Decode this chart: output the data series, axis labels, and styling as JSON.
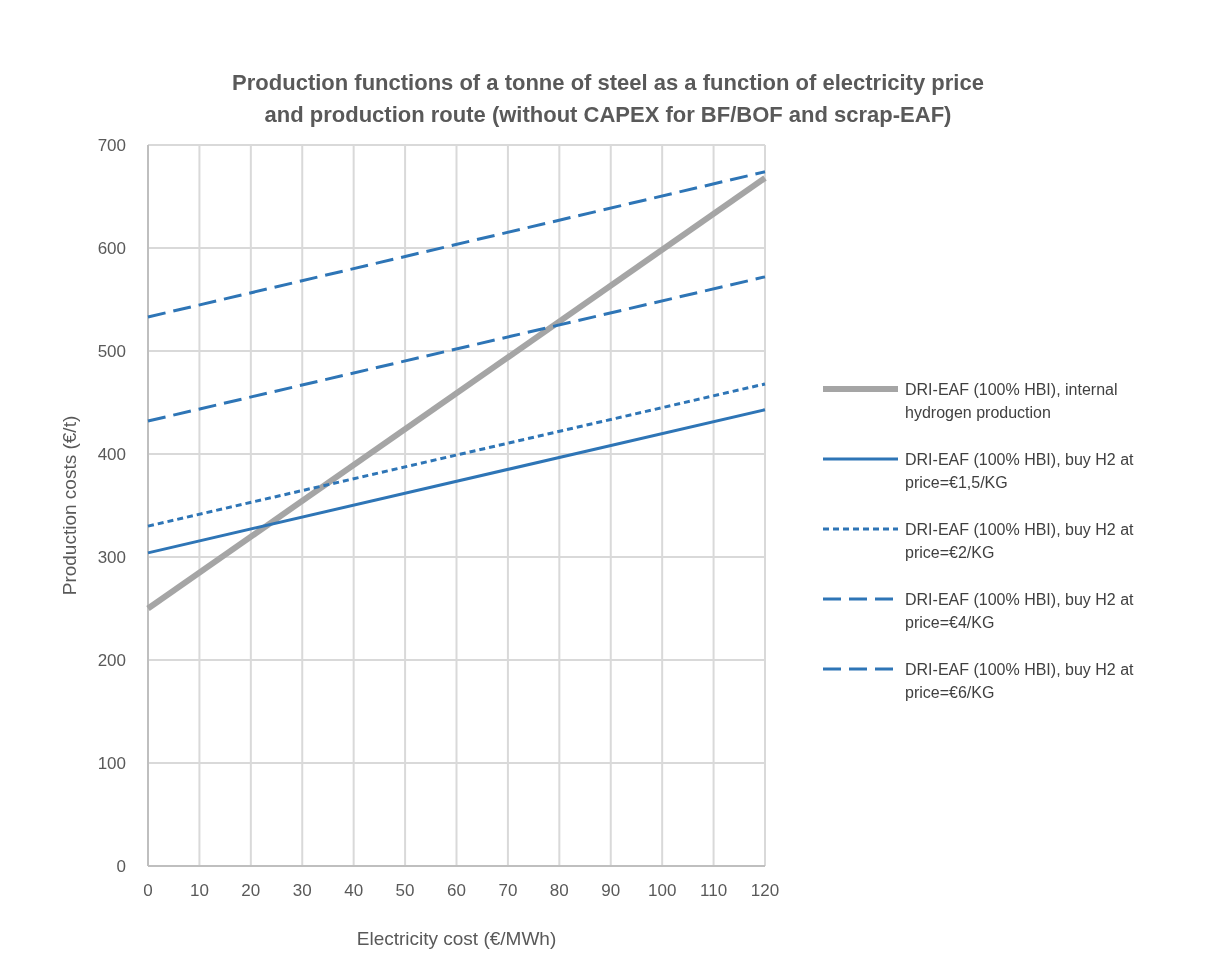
{
  "chart_data": {
    "type": "line",
    "title": "Production functions of a tonne of steel as a function of electricity price and production route (without CAPEX for BF/BOF and scrap-EAF)",
    "xlabel": "Electricity cost (€/MWh)",
    "ylabel": "Production costs (€/t)",
    "x": [
      0,
      120
    ],
    "xlim": [
      0,
      120
    ],
    "xticks": [
      0,
      10,
      20,
      30,
      40,
      50,
      60,
      70,
      80,
      90,
      100,
      110,
      120
    ],
    "ylim": [
      0,
      700
    ],
    "yticks": [
      0,
      100,
      200,
      300,
      400,
      500,
      600,
      700
    ],
    "grid": true,
    "legend": "right",
    "marker": "none",
    "series": [
      {
        "name": "DRI-EAF (100% HBI), internal hydrogen production",
        "color": "#a5a5a5",
        "line_style": "solid",
        "values": [
          250,
          668
        ]
      },
      {
        "name": "DRI-EAF (100% HBI), buy H2 at price=€1,5/KG",
        "color": "#2e75b6",
        "line_style": "solid",
        "values": [
          304,
          443
        ]
      },
      {
        "name": "DRI-EAF (100% HBI), buy H2 at price=€2/KG",
        "color": "#2e75b6",
        "line_style": "dotted",
        "values": [
          330,
          468
        ]
      },
      {
        "name": "DRI-EAF (100% HBI), buy H2 at price=€4/KG",
        "color": "#2e75b6",
        "line_style": "dashed",
        "values": [
          432,
          572
        ]
      },
      {
        "name": "DRI-EAF (100% HBI), buy H2 at price=€6/KG",
        "color": "#2e75b6",
        "line_style": "dashed",
        "values": [
          533,
          674
        ]
      }
    ]
  }
}
